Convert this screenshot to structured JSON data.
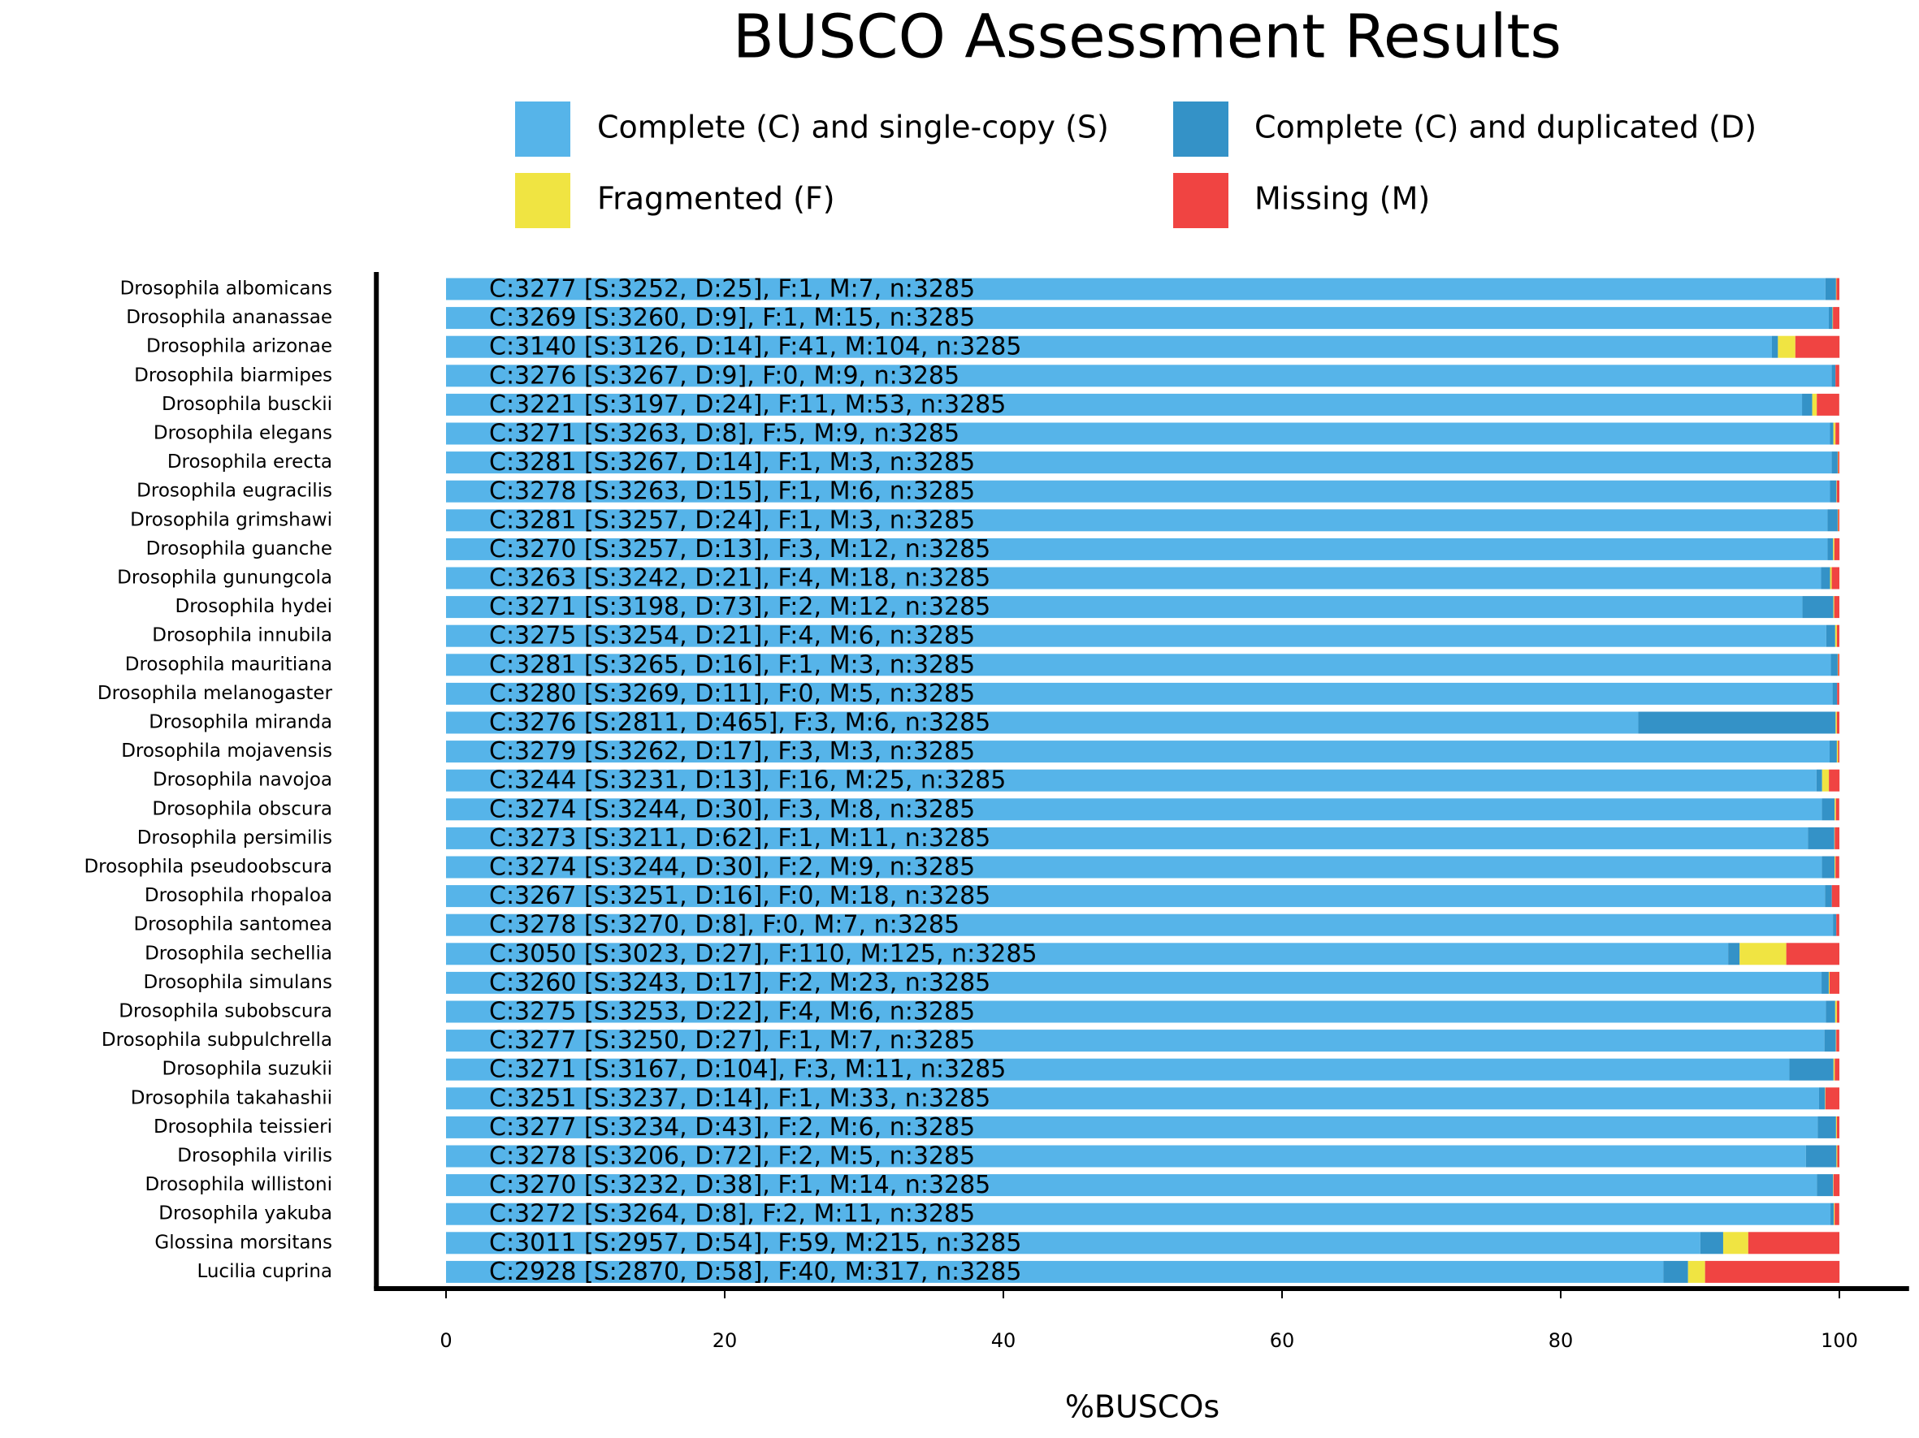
{
  "chart_data": {
    "type": "bar",
    "orientation": "horizontal",
    "stacked": true,
    "title": "BUSCO Assessment Results",
    "xlabel": "%BUSCOs",
    "categories": [
      "Drosophila albomicans",
      "Drosophila ananassae",
      "Drosophila arizonae",
      "Drosophila biarmipes",
      "Drosophila busckii",
      "Drosophila elegans",
      "Drosophila erecta",
      "Drosophila eugracilis",
      "Drosophila grimshawi",
      "Drosophila guanche",
      "Drosophila gunungcola",
      "Drosophila hydei",
      "Drosophila innubila",
      "Drosophila mauritiana",
      "Drosophila melanogaster",
      "Drosophila miranda",
      "Drosophila mojavensis",
      "Drosophila navojoa",
      "Drosophila obscura",
      "Drosophila persimilis",
      "Drosophila pseudoobscura",
      "Drosophila rhopaloa",
      "Drosophila santomea",
      "Drosophila sechellia",
      "Drosophila simulans",
      "Drosophila subobscura",
      "Drosophila subpulchrella",
      "Drosophila suzukii",
      "Drosophila takahashii",
      "Drosophila teissieri",
      "Drosophila virilis",
      "Drosophila willistoni",
      "Drosophila yakuba",
      "Glossina morsitans",
      "Lucilia cuprina"
    ],
    "series": [
      {
        "name": "Complete (C) and single-copy (S)",
        "color": "#56B4E9",
        "values": [
          99.0,
          99.24,
          95.16,
          99.45,
          97.32,
          99.33,
          99.45,
          99.33,
          99.15,
          99.15,
          98.69,
          97.35,
          99.06,
          99.39,
          99.51,
          85.57,
          99.3,
          98.36,
          98.75,
          97.75,
          98.75,
          98.97,
          99.54,
          92.02,
          98.72,
          99.03,
          98.93,
          96.41,
          98.54,
          98.45,
          97.6,
          98.39,
          99.36,
          90.02,
          87.37
        ]
      },
      {
        "name": "Complete (C) and duplicated (D)",
        "color": "#3492C7",
        "values": [
          0.76,
          0.27,
          0.43,
          0.27,
          0.73,
          0.24,
          0.43,
          0.46,
          0.73,
          0.4,
          0.64,
          2.22,
          0.64,
          0.49,
          0.33,
          14.16,
          0.52,
          0.4,
          0.91,
          1.89,
          0.91,
          0.49,
          0.24,
          0.82,
          0.52,
          0.67,
          0.82,
          3.17,
          0.43,
          1.31,
          2.19,
          1.16,
          0.24,
          1.64,
          1.77
        ]
      },
      {
        "name": "Fragmented (F)",
        "color": "#F0E442",
        "values": [
          0.03,
          0.03,
          1.25,
          0,
          0.33,
          0.15,
          0.03,
          0.03,
          0.03,
          0.09,
          0.12,
          0.06,
          0.12,
          0.03,
          0,
          0.09,
          0.09,
          0.49,
          0.09,
          0.03,
          0.06,
          0,
          0,
          3.35,
          0.06,
          0.12,
          0.03,
          0.09,
          0.03,
          0.06,
          0.06,
          0.03,
          0.06,
          1.8,
          1.22
        ]
      },
      {
        "name": "Missing (M)",
        "color": "#F04442",
        "values": [
          0.21,
          0.46,
          3.17,
          0.27,
          1.61,
          0.27,
          0.09,
          0.18,
          0.09,
          0.37,
          0.55,
          0.37,
          0.18,
          0.09,
          0.15,
          0.18,
          0.09,
          0.76,
          0.24,
          0.33,
          0.27,
          0.55,
          0.21,
          3.81,
          0.7,
          0.18,
          0.21,
          0.33,
          1.0,
          0.18,
          0.15,
          0.43,
          0.33,
          6.54,
          9.65
        ]
      }
    ],
    "bar_labels": [
      "C:3277 [S:3252, D:25], F:1, M:7, n:3285",
      "C:3269 [S:3260, D:9], F:1, M:15, n:3285",
      "C:3140 [S:3126, D:14], F:41, M:104, n:3285",
      "C:3276 [S:3267, D:9], F:0, M:9, n:3285",
      "C:3221 [S:3197, D:24], F:11, M:53, n:3285",
      "C:3271 [S:3263, D:8], F:5, M:9, n:3285",
      "C:3281 [S:3267, D:14], F:1, M:3, n:3285",
      "C:3278 [S:3263, D:15], F:1, M:6, n:3285",
      "C:3281 [S:3257, D:24], F:1, M:3, n:3285",
      "C:3270 [S:3257, D:13], F:3, M:12, n:3285",
      "C:3263 [S:3242, D:21], F:4, M:18, n:3285",
      "C:3271 [S:3198, D:73], F:2, M:12, n:3285",
      "C:3275 [S:3254, D:21], F:4, M:6, n:3285",
      "C:3281 [S:3265, D:16], F:1, M:3, n:3285",
      "C:3280 [S:3269, D:11], F:0, M:5, n:3285",
      "C:3276 [S:2811, D:465], F:3, M:6, n:3285",
      "C:3279 [S:3262, D:17], F:3, M:3, n:3285",
      "C:3244 [S:3231, D:13], F:16, M:25, n:3285",
      "C:3274 [S:3244, D:30], F:3, M:8, n:3285",
      "C:3273 [S:3211, D:62], F:1, M:11, n:3285",
      "C:3274 [S:3244, D:30], F:2, M:9, n:3285",
      "C:3267 [S:3251, D:16], F:0, M:18, n:3285",
      "C:3278 [S:3270, D:8], F:0, M:7, n:3285",
      "C:3050 [S:3023, D:27], F:110, M:125, n:3285",
      "C:3260 [S:3243, D:17], F:2, M:23, n:3285",
      "C:3275 [S:3253, D:22], F:4, M:6, n:3285",
      "C:3277 [S:3250, D:27], F:1, M:7, n:3285",
      "C:3271 [S:3167, D:104], F:3, M:11, n:3285",
      "C:3251 [S:3237, D:14], F:1, M:33, n:3285",
      "C:3277 [S:3234, D:43], F:2, M:6, n:3285",
      "C:3278 [S:3206, D:72], F:2, M:5, n:3285",
      "C:3270 [S:3232, D:38], F:1, M:14, n:3285",
      "C:3272 [S:3264, D:8], F:2, M:11, n:3285",
      "C:3011 [S:2957, D:54], F:59, M:215, n:3285",
      "C:2928 [S:2870, D:58], F:40, M:317, n:3285"
    ],
    "xlim": [
      -5,
      105
    ],
    "xticks": [
      0,
      20,
      40,
      60,
      80,
      100
    ],
    "legend": "top",
    "grid": false
  }
}
